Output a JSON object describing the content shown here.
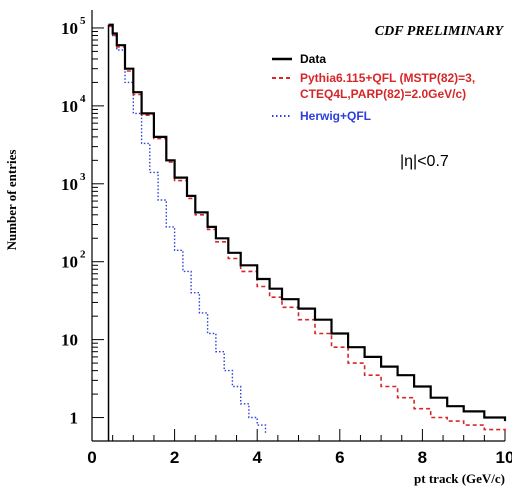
{
  "chart_data": {
    "type": "line",
    "ylabel": "Number of entries",
    "xlabel": "pt track (GeV/c)",
    "annotation_top": "CDF PRELIMINARY",
    "annotation_eta": "|η|<0.7",
    "xlim": [
      0,
      10
    ],
    "ylim": [
      0.5,
      170000
    ],
    "yscale": "log",
    "grid": false,
    "legend_position": "top-right",
    "xticks": [
      0,
      2,
      4,
      6,
      8,
      10
    ],
    "yticks": [
      {
        "value": 1,
        "label": "1",
        "exp": ""
      },
      {
        "value": 10,
        "label": "10",
        "exp": ""
      },
      {
        "value": 100,
        "label": "10",
        "exp": "2"
      },
      {
        "value": 1000,
        "label": "10",
        "exp": "3"
      },
      {
        "value": 10000,
        "label": "10",
        "exp": "4"
      },
      {
        "value": 100000,
        "label": "10",
        "exp": "5"
      }
    ],
    "series": [
      {
        "name": "Data",
        "color": "#000000",
        "style": "solid",
        "x": [
          0.4,
          0.5,
          0.6,
          0.8,
          1.0,
          1.2,
          1.5,
          1.8,
          2.0,
          2.3,
          2.5,
          2.8,
          3.0,
          3.3,
          3.6,
          4.0,
          4.3,
          4.6,
          5.0,
          5.4,
          5.8,
          6.2,
          6.6,
          7.0,
          7.4,
          7.8,
          8.2,
          8.6,
          9.0,
          9.5,
          10.0
        ],
        "y": [
          110000,
          85000,
          60000,
          30000,
          15000,
          8000,
          4000,
          2000,
          1200,
          700,
          430,
          280,
          200,
          130,
          90,
          60,
          45,
          33,
          25,
          18,
          12,
          8,
          6,
          4.5,
          3.5,
          2.5,
          1.8,
          1.4,
          1.2,
          1.0,
          0.9
        ]
      },
      {
        "name": "Pythia6.115+QFL (MSTP(82)=3, CTEQ4L,PARP(82)=2.0GeV/c)",
        "color": "#d62728",
        "style": "dashed",
        "x": [
          0.4,
          0.5,
          0.6,
          0.8,
          1.0,
          1.2,
          1.5,
          1.8,
          2.0,
          2.3,
          2.5,
          2.8,
          3.0,
          3.3,
          3.6,
          4.0,
          4.3,
          4.6,
          5.0,
          5.4,
          5.8,
          6.2,
          6.6,
          7.0,
          7.4,
          7.8,
          8.2,
          8.6,
          9.0,
          9.5,
          10.0
        ],
        "y": [
          105000,
          80000,
          57000,
          28000,
          14000,
          7600,
          3800,
          1900,
          1100,
          650,
          400,
          260,
          180,
          110,
          75,
          48,
          35,
          26,
          18,
          12,
          8,
          5,
          3.5,
          2.5,
          1.8,
          1.3,
          1.0,
          0.9,
          0.8,
          0.7,
          0.6
        ]
      },
      {
        "name": "Herwig+QFL",
        "color": "#2c3edb",
        "style": "dotted",
        "x": [
          0.4,
          0.5,
          0.6,
          0.8,
          1.0,
          1.2,
          1.4,
          1.6,
          1.8,
          2.0,
          2.2,
          2.4,
          2.6,
          2.8,
          3.0,
          3.2,
          3.4,
          3.6,
          3.8,
          4.0,
          4.2
        ],
        "y": [
          110000,
          80000,
          52000,
          20000,
          8000,
          3300,
          1400,
          620,
          280,
          140,
          75,
          40,
          22,
          12,
          7,
          4,
          2.5,
          1.5,
          1.0,
          0.8,
          0.6
        ]
      }
    ]
  }
}
